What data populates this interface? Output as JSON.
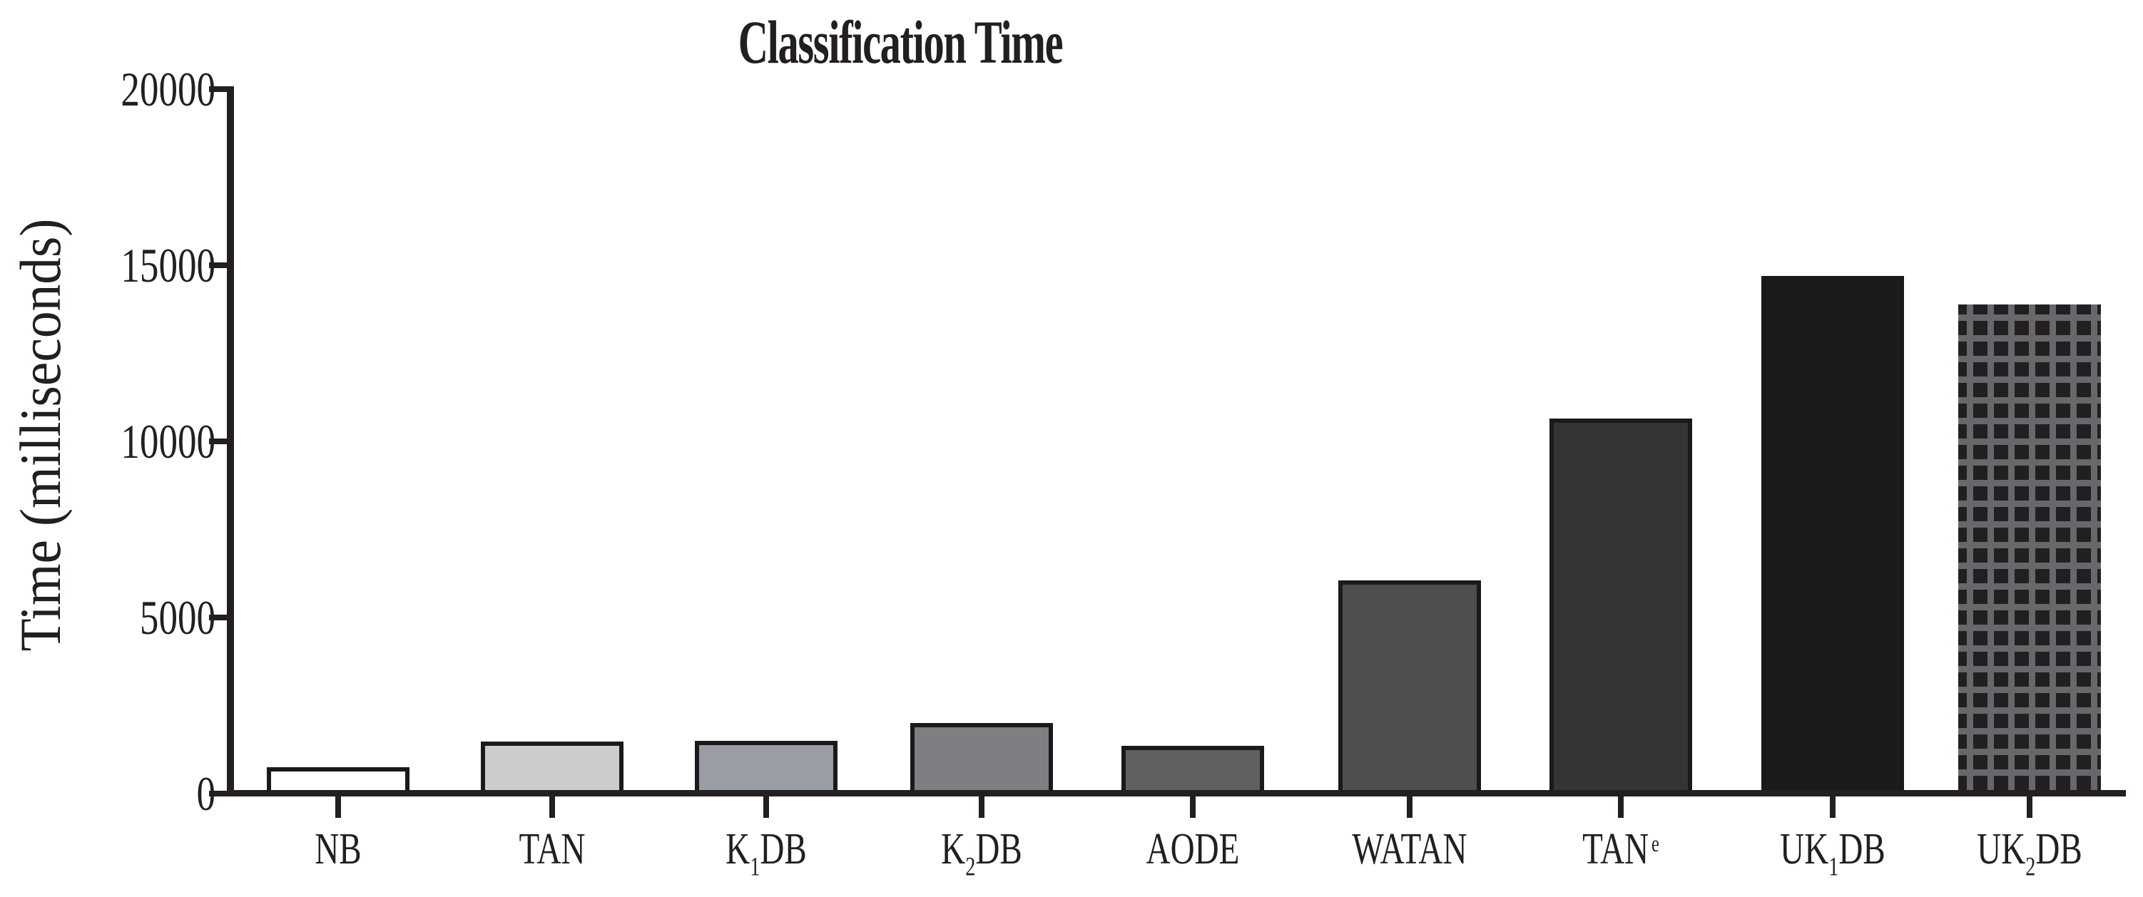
{
  "page": {
    "background": "#ffffff"
  },
  "chart_data": {
    "type": "bar",
    "title": "Classification Time",
    "xlabel": "",
    "ylabel": "Time (milliseconds)",
    "ylim": [
      0,
      20000
    ],
    "grid": false,
    "legend_position": "none",
    "axis_color": "#231f20",
    "bar_outline_color": "#1a1a1a",
    "y_ticks": [
      {
        "value": 0,
        "label": "0"
      },
      {
        "value": 5000,
        "label": "5000"
      },
      {
        "value": 10000,
        "label": "10000"
      },
      {
        "value": 15000,
        "label": "15000"
      },
      {
        "value": 20000,
        "label": "20000"
      }
    ],
    "categories": [
      "NB",
      "TAN",
      "K1DB",
      "K2DB",
      "AODE",
      "WATAN",
      "TANe",
      "UK1DB",
      "UK2DB"
    ],
    "values": [
      750,
      1480,
      1500,
      2000,
      1360,
      6050,
      10640,
      14700,
      13880
    ],
    "bars": [
      {
        "key": "nb",
        "value": 750,
        "fill": "#ffffff",
        "label_parts": [
          {
            "t": "NB"
          }
        ]
      },
      {
        "key": "tan",
        "value": 1480,
        "fill": "#cbcccd",
        "label_parts": [
          {
            "t": "TAN"
          }
        ]
      },
      {
        "key": "k1db",
        "value": 1500,
        "fill": "#9a9da5",
        "label_parts": [
          {
            "t": "K"
          },
          {
            "t": "1",
            "pos": "sub"
          },
          {
            "t": "DB"
          }
        ]
      },
      {
        "key": "k2db",
        "value": 2000,
        "fill": "#7e7f83",
        "label_parts": [
          {
            "t": "K"
          },
          {
            "t": "2",
            "pos": "sub"
          },
          {
            "t": "DB"
          }
        ]
      },
      {
        "key": "aode",
        "value": 1360,
        "fill": "#606063",
        "label_parts": [
          {
            "t": "AODE"
          }
        ]
      },
      {
        "key": "watan",
        "value": 6050,
        "fill": "#4e4e51",
        "label_parts": [
          {
            "t": "WATAN"
          }
        ]
      },
      {
        "key": "tan-e",
        "value": 10640,
        "fill": "#343436",
        "label_parts": [
          {
            "t": "TAN"
          },
          {
            "t": "e",
            "pos": "sup"
          }
        ]
      },
      {
        "key": "uk1db",
        "value": 14700,
        "fill": "#1b1b1d",
        "label_parts": [
          {
            "t": "UK"
          },
          {
            "t": "1",
            "pos": "sub"
          },
          {
            "t": "DB"
          }
        ]
      },
      {
        "key": "uk2db",
        "value": 13880,
        "fill": "#231f20",
        "pattern": "grid",
        "pattern_color": "#66686b",
        "label_parts": [
          {
            "t": "UK"
          },
          {
            "t": "2",
            "pos": "sub"
          },
          {
            "t": "DB"
          }
        ]
      }
    ]
  }
}
